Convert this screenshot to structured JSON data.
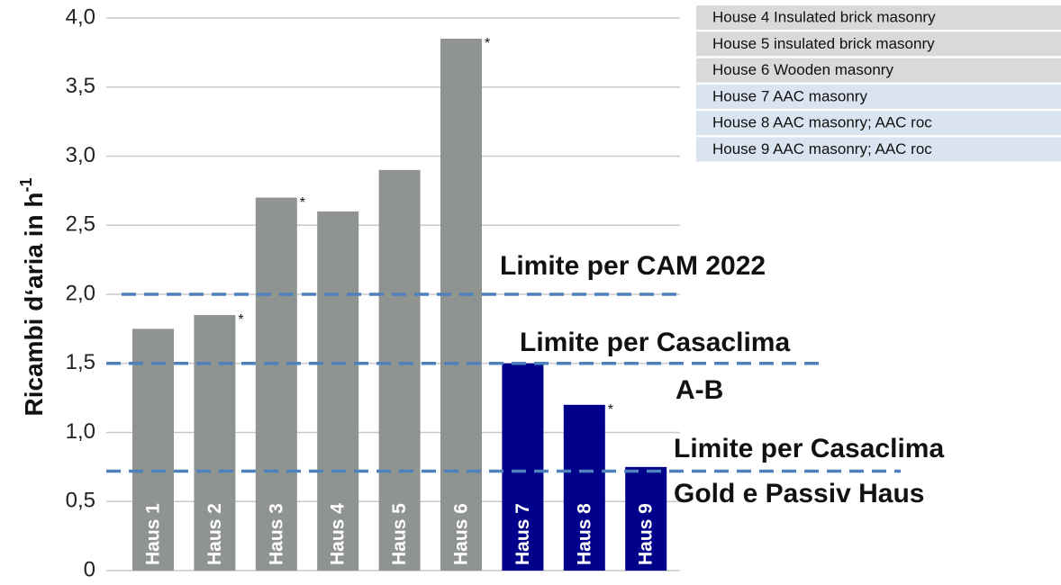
{
  "chart_data": {
    "type": "bar",
    "ylabel": "Ricambi d‘aria  in h",
    "ylabel_sup": "-1",
    "categories": [
      "Haus 1",
      "Haus 2",
      "Haus 3",
      "Haus 4",
      "Haus 5",
      "Haus 6",
      "Haus 7",
      "Haus 8",
      "Haus 9"
    ],
    "values": [
      1.75,
      1.85,
      2.7,
      2.6,
      2.9,
      3.85,
      1.5,
      1.2,
      0.75
    ],
    "colors": [
      "#8f9490",
      "#8f9490",
      "#8f9490",
      "#8f9490",
      "#8f9490",
      "#8f9490",
      "#00008b",
      "#00008b",
      "#00008b"
    ],
    "markers": [
      null,
      "*",
      "*",
      null,
      null,
      "*",
      null,
      "*",
      null
    ],
    "ylim": [
      0,
      4.0
    ],
    "yticks": [
      0,
      {
        "value": 0.5,
        "label": "0,5"
      },
      {
        "value": 1.0,
        "label": "1,0"
      },
      {
        "value": 1.5,
        "label": "1,5"
      },
      {
        "value": 2.0,
        "label": "2,0"
      },
      {
        "value": 2.5,
        "label": "2,5"
      },
      {
        "value": 3.0,
        "label": "3,0"
      },
      {
        "value": 3.5,
        "label": "3,5"
      },
      {
        "value": 4.0,
        "label": "4,0"
      }
    ],
    "grid": true,
    "reference_lines": [
      {
        "value": 2.0,
        "label_lines": [
          "Limite per CAM 2022"
        ],
        "color": "#4f81bd"
      },
      {
        "value": 1.5,
        "label_lines": [
          "Limite per Casaclima",
          "A-B"
        ],
        "color": "#4f81bd"
      },
      {
        "value": 0.72,
        "label_lines": [
          "Limite per Casaclima",
          "Gold e Passiv Haus"
        ],
        "color": "#4f81bd"
      }
    ],
    "legend_rows": [
      {
        "text": "House 4 Insulated brick masonry",
        "color": "#d9d9d9"
      },
      {
        "text": "House 5 insulated brick masonry",
        "color": "#d9d9d9"
      },
      {
        "text": "House 6 Wooden masonry",
        "color": "#d9d9d9"
      },
      {
        "text": "House 7 AAC masonry",
        "color": "#dae3f0"
      },
      {
        "text": "House 8 AAC masonry;  AAC roc",
        "color": "#dae3f0"
      },
      {
        "text": "House 9 AAC masonry;  AAC roc",
        "color": "#dae3f0"
      }
    ]
  }
}
